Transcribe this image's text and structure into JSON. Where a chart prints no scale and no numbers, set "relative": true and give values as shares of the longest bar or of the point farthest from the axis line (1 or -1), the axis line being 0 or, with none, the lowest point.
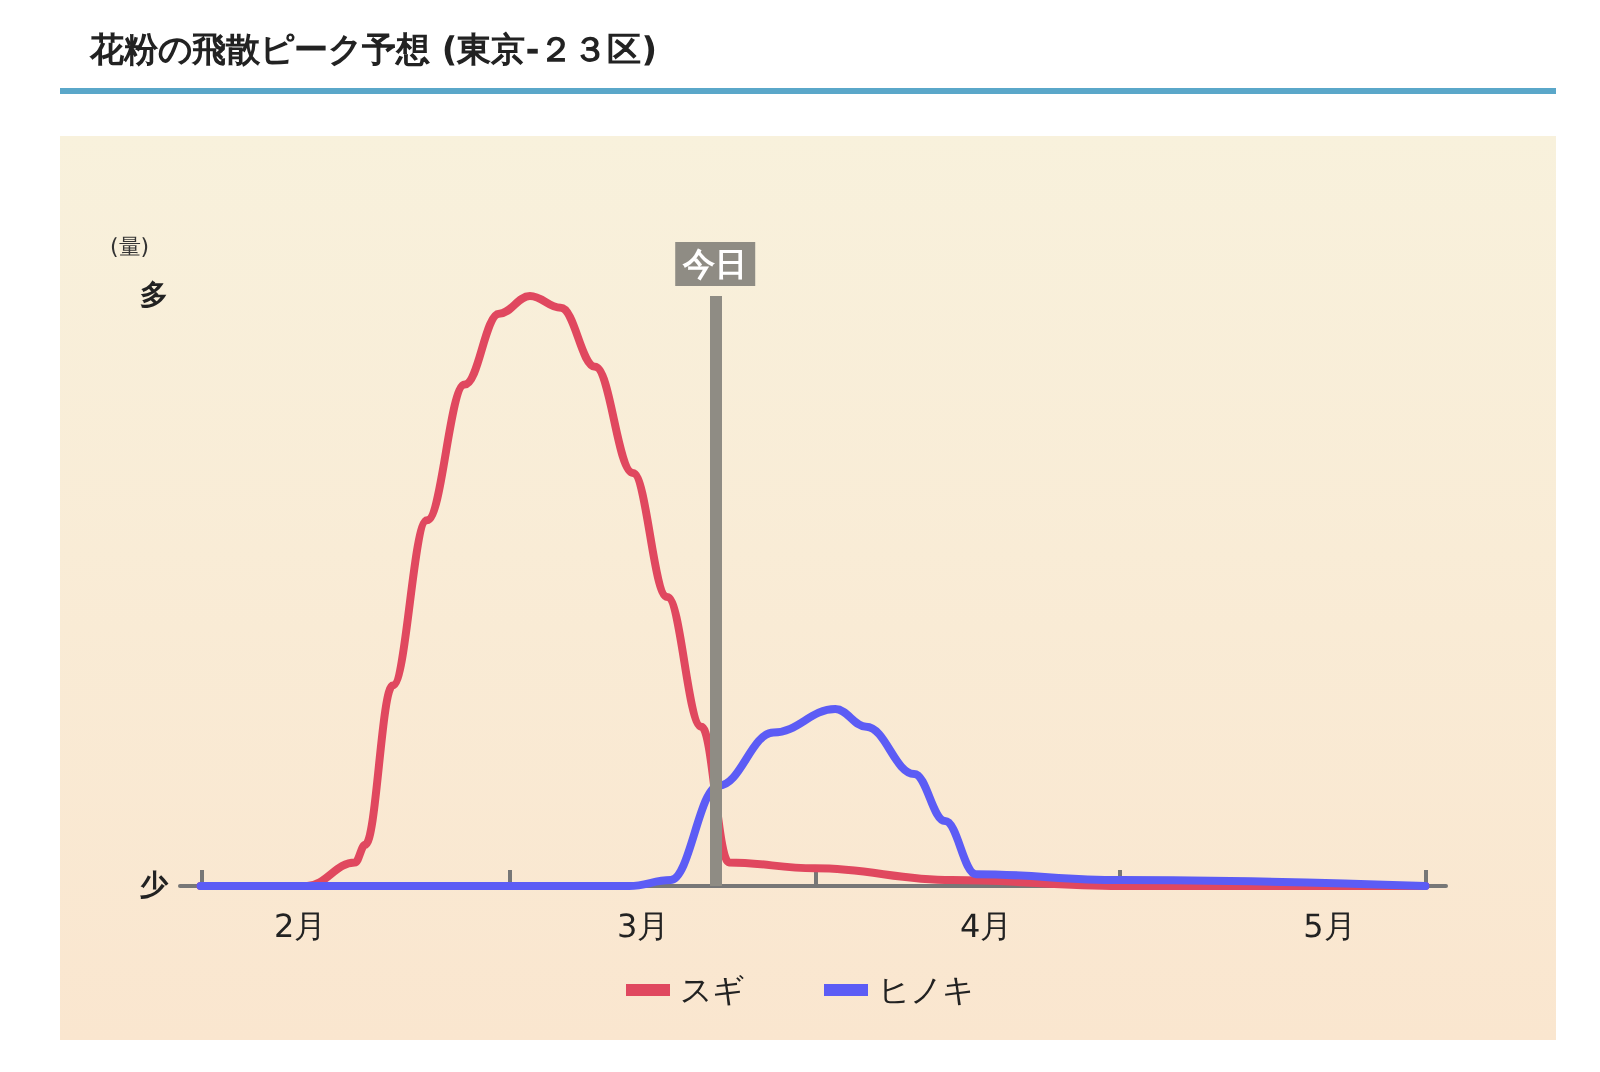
{
  "chart_data": {
    "type": "line",
    "title": "花粉の飛散ピーク予想 (東京-２３区)",
    "ylabel": "(量)",
    "relative": true,
    "annotations": [
      "多",
      "少"
    ],
    "xlim": [
      1.65,
      5.34
    ],
    "xticks": [
      {
        "value": 1.71,
        "label": null
      },
      {
        "value": 2,
        "label": "2月"
      },
      {
        "value": 2.61,
        "label": null
      },
      {
        "value": 3,
        "label": "3月"
      },
      {
        "value": 3.5,
        "label": null
      },
      {
        "value": 4,
        "label": "4月"
      },
      {
        "value": 4.39,
        "label": null
      },
      {
        "value": 5,
        "label": "5月"
      },
      {
        "value": 5.28,
        "label": null
      }
    ],
    "ref_lines": [
      {
        "axis": "x",
        "value": 3.21,
        "label": "今日",
        "color": "#8f8c84"
      }
    ],
    "legend": "bottom",
    "grid": false,
    "marker": "none",
    "line_style": "solid",
    "series": [
      {
        "name": "スギ",
        "color": "#e0485f",
        "x": [
          1.71,
          2.02,
          2.16,
          2.19,
          2.27,
          2.37,
          2.48,
          2.58,
          2.67,
          2.76,
          2.86,
          2.97,
          3.07,
          3.17,
          3.25,
          3.5,
          3.9,
          4.39,
          5.28
        ],
        "values": [
          0,
          0,
          0.04,
          0.07,
          0.34,
          0.62,
          0.85,
          0.97,
          1,
          0.98,
          0.88,
          0.7,
          0.49,
          0.27,
          0.04,
          0.03,
          0.01,
          0,
          0
        ]
      },
      {
        "name": "ヒノキ",
        "color": "#5c5cf5",
        "x": [
          1.71,
          2.96,
          3.08,
          3.22,
          3.38,
          3.56,
          3.65,
          3.79,
          3.88,
          3.97,
          4.39,
          5.28
        ],
        "values": [
          0,
          0,
          0.01,
          0.17,
          0.26,
          0.3,
          0.27,
          0.19,
          0.11,
          0.02,
          0.01,
          0
        ]
      }
    ]
  }
}
